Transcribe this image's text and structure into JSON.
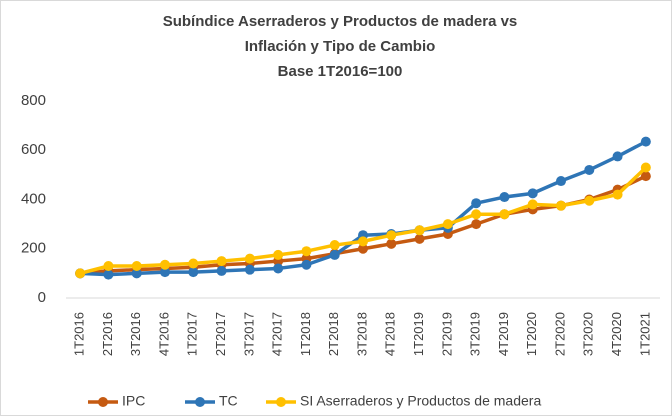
{
  "chart_data": {
    "type": "line",
    "title": [
      "Subíndice Aserraderos y Productos de madera vs",
      "Inflación y Tipo de Cambio",
      "Base 1T2016=100"
    ],
    "categories": [
      "1T2016",
      "2T2016",
      "3T2016",
      "4T2016",
      "1T2017",
      "2T2017",
      "3T2017",
      "4T2017",
      "1T2018",
      "2T2018",
      "3T2018",
      "4T2018",
      "1T2019",
      "2T2019",
      "3T2019",
      "4T2019",
      "1T2020",
      "2T2020",
      "3T2020",
      "4T2020",
      "1T2021"
    ],
    "series": [
      {
        "name": "IPC",
        "color": "#c55a11",
        "values": [
          100,
          110,
          115,
          120,
          125,
          135,
          140,
          150,
          160,
          180,
          200,
          220,
          240,
          260,
          300,
          340,
          360,
          375,
          400,
          440,
          495
        ]
      },
      {
        "name": "TC",
        "color": "#2e75b6",
        "values": [
          100,
          95,
          100,
          105,
          105,
          110,
          115,
          120,
          135,
          175,
          255,
          260,
          275,
          285,
          385,
          410,
          425,
          475,
          520,
          575,
          635
        ]
      },
      {
        "name": "SI Aserraderos y Productos de madera",
        "color": "#ffc000",
        "values": [
          100,
          130,
          130,
          135,
          140,
          150,
          160,
          175,
          190,
          215,
          230,
          255,
          275,
          300,
          340,
          340,
          380,
          375,
          395,
          420,
          530
        ]
      }
    ],
    "ylim": [
      0,
      800
    ],
    "yticks": [
      0,
      200,
      400,
      600,
      800
    ],
    "grid": false,
    "legend": "bottom"
  }
}
